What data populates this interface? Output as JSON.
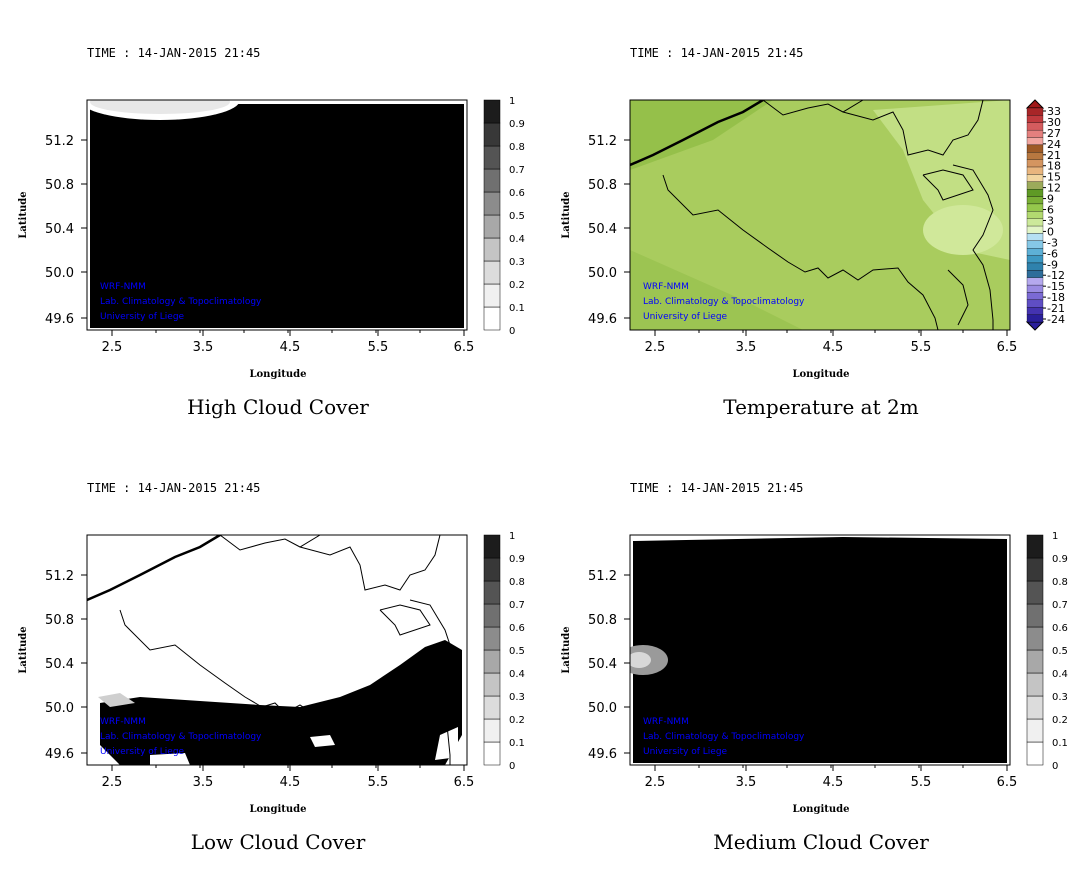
{
  "panels": [
    {
      "id": "high-cloud",
      "time": "TIME : 14-JAN-2015 21:45",
      "title": "High Cloud Cover",
      "field": "high",
      "colorbar": {
        "labels": [
          "0",
          "0.1",
          "0.2",
          "0.3",
          "0.4",
          "0.5",
          "0.6",
          "0.7",
          "0.8",
          "0.9",
          "1"
        ],
        "colors": [
          "#ffffff",
          "#f0f0f0",
          "#dcdcdc",
          "#c4c4c4",
          "#a8a8a8",
          "#8c8c8c",
          "#707070",
          "#545454",
          "#383838",
          "#1c1c1c"
        ]
      }
    },
    {
      "id": "temperature",
      "time": "TIME : 14-JAN-2015 21:45",
      "title": "Temperature at 2m",
      "field": "temp",
      "colorbar": {
        "labels": [
          "-24",
          "-21",
          "-18",
          "-15",
          "-12",
          "-9",
          "-6",
          "-3",
          "0",
          "3",
          "6",
          "9",
          "12",
          "15",
          "18",
          "21",
          "24",
          "27",
          "30",
          "33"
        ],
        "colors": [
          "#2a1f9a",
          "#4433b0",
          "#5f4ec4",
          "#7b6ad4",
          "#9a8be2",
          "#b5a9ee",
          "#2e6d9a",
          "#2f82ad",
          "#3d98c2",
          "#5db0d6",
          "#86c8e6",
          "#b6e0f3",
          "#e2f5c6",
          "#cce99a",
          "#b2d970",
          "#95c74c",
          "#7aaf36",
          "#5f9a25",
          "#9caa5a",
          "#f2d6a0",
          "#e8b57e",
          "#d49560",
          "#b87840",
          "#9e5a26",
          "#f2a6a0",
          "#e4807e",
          "#d45c5e",
          "#c03a3e",
          "#a82628"
        ]
      }
    },
    {
      "id": "low-cloud",
      "time": "TIME : 14-JAN-2015 21:45",
      "title": "Low Cloud Cover",
      "field": "low",
      "colorbar": {
        "labels": [
          "0",
          "0.1",
          "0.2",
          "0.3",
          "0.4",
          "0.5",
          "0.6",
          "0.7",
          "0.8",
          "0.9",
          "1"
        ],
        "colors": [
          "#ffffff",
          "#f0f0f0",
          "#dcdcdc",
          "#c4c4c4",
          "#a8a8a8",
          "#8c8c8c",
          "#707070",
          "#545454",
          "#383838",
          "#1c1c1c"
        ]
      }
    },
    {
      "id": "medium-cloud",
      "time": "TIME : 14-JAN-2015 21:45",
      "title": "Medium Cloud Cover",
      "field": "medium",
      "colorbar": {
        "labels": [
          "0",
          "0.1",
          "0.2",
          "0.3",
          "0.4",
          "0.5",
          "0.6",
          "0.7",
          "0.8",
          "0.9",
          "1"
        ],
        "colors": [
          "#ffffff",
          "#f0f0f0",
          "#dcdcdc",
          "#c4c4c4",
          "#a8a8a8",
          "#8c8c8c",
          "#707070",
          "#545454",
          "#383838",
          "#1c1c1c"
        ]
      }
    }
  ],
  "axes": {
    "xlabel": "Longitude",
    "ylabel": "Latitude",
    "xticks": [
      "2.5",
      "3.5",
      "4.5",
      "5.5",
      "6.5"
    ],
    "yticks": [
      "51.2",
      "50.8",
      "50.4",
      "50.0",
      "49.6"
    ]
  },
  "credits": [
    "WRF-NMM",
    "Lab. Climatology & Topoclimatology",
    "University of Liege"
  ],
  "colors": {
    "credit": "#0000ff",
    "border": "#000000"
  }
}
